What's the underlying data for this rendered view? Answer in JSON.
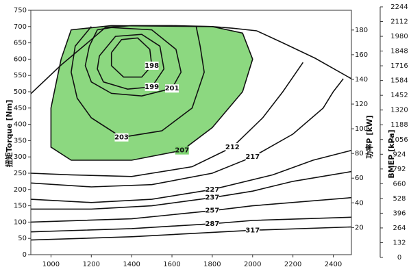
{
  "chart_data": {
    "type": "contour",
    "xlim": [
      900,
      2490
    ],
    "xticks": [
      1000,
      1200,
      1400,
      1600,
      1800,
      2000,
      2200,
      2400
    ],
    "ylabel": "扭矩Torque [Nm]",
    "ylim": [
      0,
      750
    ],
    "yticks": [
      0,
      50,
      100,
      150,
      200,
      250,
      300,
      350,
      400,
      450,
      500,
      550,
      600,
      650,
      700,
      750
    ],
    "y2label": "功率P [kW]",
    "y2lim": [
      -2,
      196
    ],
    "y2ticks": [
      20,
      40,
      60,
      80,
      100,
      120,
      140,
      160,
      180
    ],
    "y3label": "BMEP [kPa]",
    "y3lim": [
      0,
      2244
    ],
    "y3ticks": [
      0,
      132,
      264,
      396,
      528,
      660,
      792,
      924,
      1056,
      1188,
      1320,
      1452,
      1584,
      1716,
      1848,
      1980,
      2112,
      2244
    ],
    "full_load": {
      "x": [
        900,
        1050,
        1200,
        1270,
        1400,
        1600,
        1800,
        1900,
        2020,
        2150,
        2310,
        2490
      ],
      "y": [
        494,
        582,
        660,
        697,
        703,
        703,
        700,
        695,
        687,
        650,
        603,
        540
      ],
      "color": "#111111"
    },
    "series": [
      {
        "level": 198,
        "color": "#111111",
        "x": [
          1300,
          1350,
          1430,
          1490,
          1500,
          1450,
          1360,
          1300,
          1300
        ],
        "y": [
          620,
          660,
          665,
          630,
          580,
          545,
          545,
          580,
          620
        ]
      },
      {
        "level": 199,
        "color": "#111111",
        "x": [
          1240,
          1320,
          1450,
          1540,
          1560,
          1500,
          1380,
          1260,
          1230,
          1240
        ],
        "y": [
          610,
          670,
          676,
          640,
          570,
          515,
          508,
          530,
          570,
          610
        ]
      },
      {
        "level": 201,
        "color": "#111111",
        "x": [
          1190,
          1230,
          1300,
          1500,
          1620,
          1645,
          1600,
          1450,
          1300,
          1200,
          1170,
          1190
        ],
        "y": [
          640,
          690,
          697,
          690,
          630,
          560,
          510,
          487,
          495,
          530,
          580,
          640
        ]
      },
      {
        "level": 203,
        "color": "#111111",
        "x": [
          1200,
          1120,
          1100,
          1130,
          1200,
          1350,
          1550,
          1700,
          1760,
          1740,
          1720
        ],
        "y": [
          700,
          640,
          560,
          480,
          420,
          360,
          380,
          450,
          560,
          640,
          700
        ]
      },
      {
        "level": 207,
        "color": "#111111",
        "fill": "#7fd472",
        "x": [
          1300,
          1100,
          1050,
          1000,
          1000,
          1100,
          1400,
          1650,
          1800,
          1950,
          2000,
          1950,
          1800,
          1300
        ],
        "y": [
          703,
          690,
          600,
          450,
          330,
          290,
          290,
          320,
          390,
          500,
          600,
          680,
          700,
          703
        ]
      },
      {
        "level": 212,
        "color": "#111111",
        "x": [
          900,
          1100,
          1400,
          1700,
          1900,
          2050,
          2150,
          2250
        ],
        "y": [
          250,
          245,
          240,
          270,
          330,
          420,
          500,
          590
        ]
      },
      {
        "level": 217,
        "color": "#111111",
        "x": [
          900,
          1200,
          1500,
          1800,
          2000,
          2200,
          2350,
          2400,
          2450
        ],
        "y": [
          220,
          208,
          215,
          250,
          300,
          370,
          450,
          500,
          540
        ]
      },
      {
        "level": 227,
        "color": "#111111",
        "x": [
          900,
          1200,
          1500,
          1800,
          2100,
          2300,
          2490
        ],
        "y": [
          170,
          160,
          170,
          200,
          245,
          290,
          320
        ]
      },
      {
        "level": 237,
        "color": "#111111",
        "x": [
          900,
          1200,
          1500,
          1800,
          2000,
          2200,
          2490
        ],
        "y": [
          140,
          140,
          150,
          175,
          195,
          225,
          255
        ]
      },
      {
        "level": 257,
        "color": "#111111",
        "x": [
          900,
          1400,
          1800,
          2000,
          2490
        ],
        "y": [
          100,
          110,
          135,
          150,
          175
        ]
      },
      {
        "level": 287,
        "color": "#111111",
        "x": [
          900,
          1400,
          1800,
          2000,
          2490
        ],
        "y": [
          70,
          80,
          95,
          105,
          115
        ]
      },
      {
        "level": 317,
        "color": "#111111",
        "x": [
          900,
          1400,
          2000,
          2490
        ],
        "y": [
          45,
          55,
          75,
          85
        ]
      }
    ]
  }
}
